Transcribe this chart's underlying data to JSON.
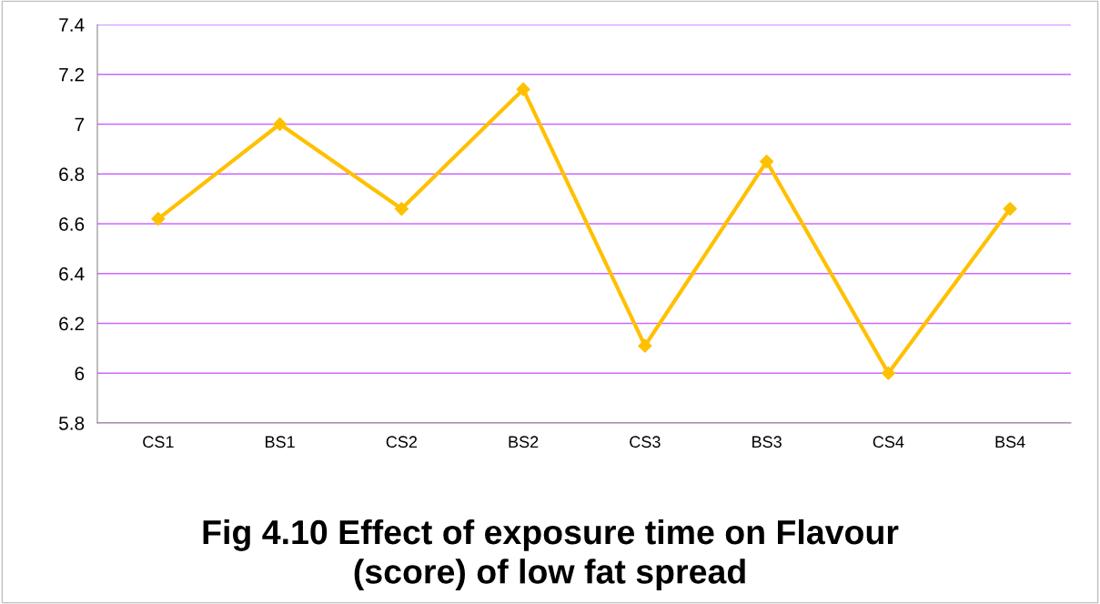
{
  "chart_data": {
    "type": "line",
    "title": "Fig 4.10 Effect of exposure time on Flavour\n(score) of low fat spread",
    "categories": [
      "CS1",
      "BS1",
      "CS2",
      "BS2",
      "CS3",
      "BS3",
      "CS4",
      "BS4"
    ],
    "series": [
      {
        "color": "#ffc000",
        "values": [
          6.62,
          7.0,
          6.66,
          7.14,
          6.11,
          6.85,
          6.0,
          6.66
        ]
      }
    ],
    "ylim": [
      5.8,
      7.4
    ],
    "yticks": [
      5.8,
      6,
      6.2,
      6.4,
      6.6,
      6.8,
      7,
      7.2,
      7.4
    ],
    "grid": "y",
    "marker": "diamond",
    "line_style": "solid"
  }
}
